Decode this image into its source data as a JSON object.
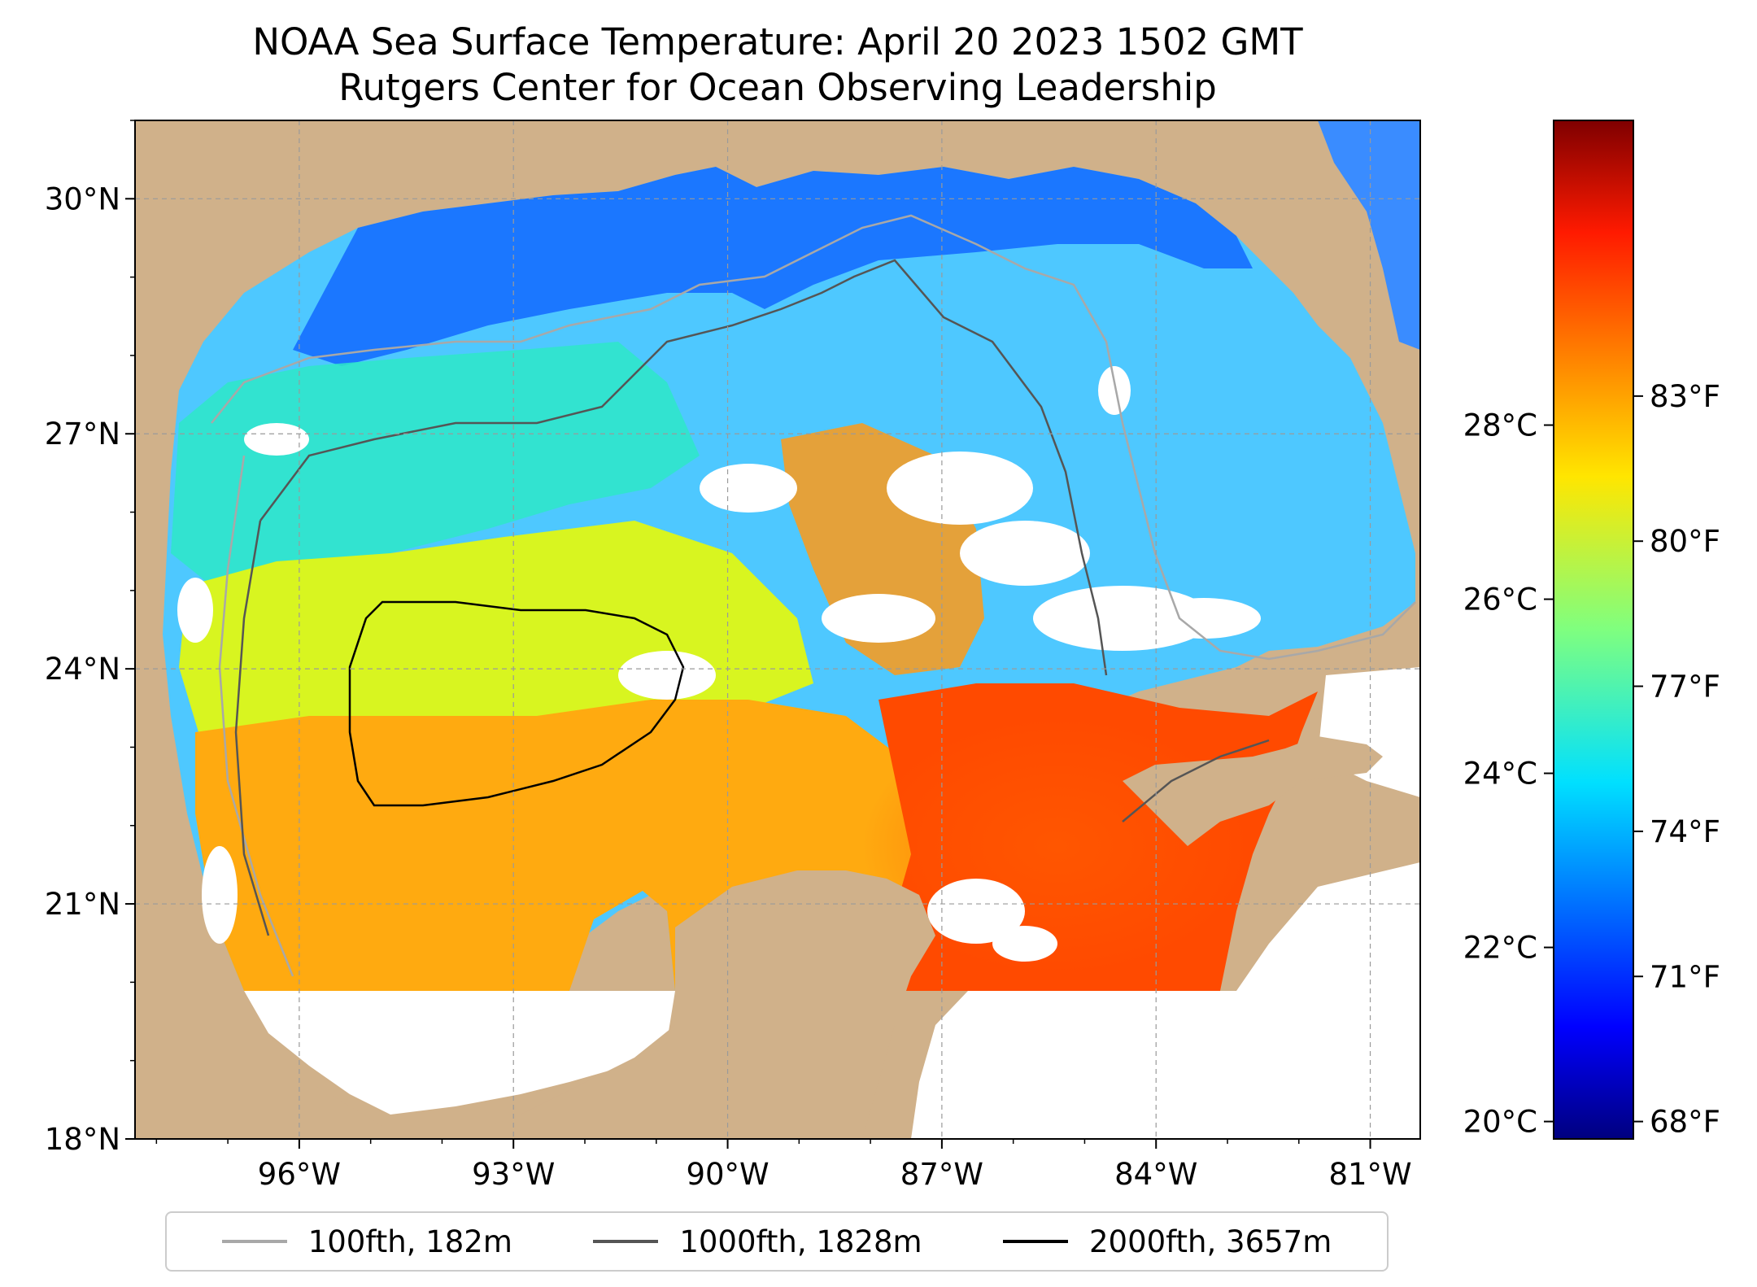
{
  "title": {
    "line1": "NOAA Sea Surface Temperature: April 20 2023 1502 GMT",
    "line2": "Rutgers Center for Ocean Observing Leadership"
  },
  "map": {
    "extent": {
      "lon_min": -98.3,
      "lon_max": -80.3,
      "lat_min": 18,
      "lat_max": 31
    },
    "land_color": "#d0b18a",
    "lon_ticks": [
      {
        "value": -96,
        "label": "96°W"
      },
      {
        "value": -93,
        "label": "93°W"
      },
      {
        "value": -90,
        "label": "90°W"
      },
      {
        "value": -87,
        "label": "87°W"
      },
      {
        "value": -84,
        "label": "84°W"
      },
      {
        "value": -81,
        "label": "81°W"
      }
    ],
    "lat_ticks": [
      {
        "value": 30,
        "label": "30°N"
      },
      {
        "value": 27,
        "label": "27°N"
      },
      {
        "value": 24,
        "label": "24°N"
      },
      {
        "value": 21,
        "label": "21°N"
      },
      {
        "value": 18,
        "label": "18°N"
      }
    ],
    "grid": true
  },
  "colorbar": {
    "colormap": "jet",
    "range_c": [
      19.8,
      31.5
    ],
    "celsius_ticks": [
      {
        "value": 20,
        "label": "20°C"
      },
      {
        "value": 22,
        "label": "22°C"
      },
      {
        "value": 24,
        "label": "24°C"
      },
      {
        "value": 26,
        "label": "26°C"
      },
      {
        "value": 28,
        "label": "28°C"
      }
    ],
    "fahrenheit_ticks": [
      {
        "value": 68,
        "label": "68°F"
      },
      {
        "value": 71,
        "label": "71°F"
      },
      {
        "value": 74,
        "label": "74°F"
      },
      {
        "value": 77,
        "label": "77°F"
      },
      {
        "value": 80,
        "label": "80°F"
      },
      {
        "value": 83,
        "label": "83°F"
      }
    ]
  },
  "legend": [
    {
      "label": "100fth, 182m",
      "color": "#a8a8a8"
    },
    {
      "label": "1000fth, 1828m",
      "color": "#555555"
    },
    {
      "label": "2000fth, 3657m",
      "color": "#000000"
    }
  ]
}
